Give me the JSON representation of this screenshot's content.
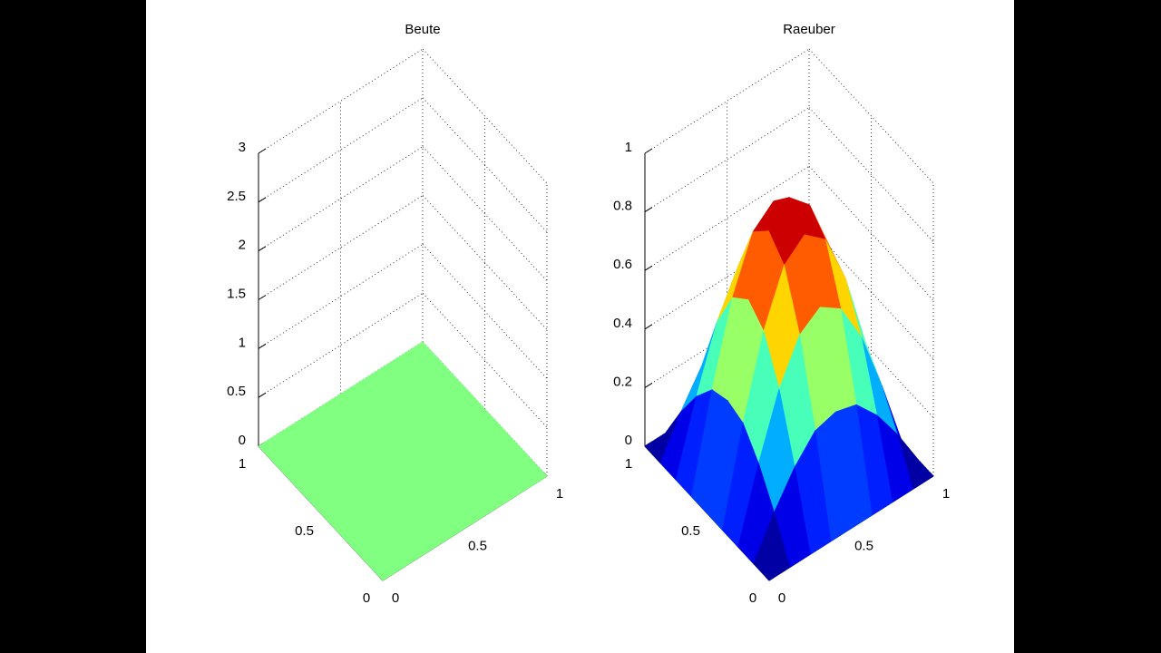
{
  "chart_data": [
    {
      "type": "surface",
      "title": "Beute",
      "colormap": "jet",
      "grid": true,
      "x": [
        0,
        1
      ],
      "y": [
        0,
        1
      ],
      "z": [
        [
          0,
          0
        ],
        [
          0,
          0
        ]
      ],
      "xlim": [
        0,
        1
      ],
      "ylim": [
        0,
        1
      ],
      "zlim": [
        0,
        3
      ],
      "xticks": [
        0,
        0.5,
        1
      ],
      "yticks": [
        0,
        0.5,
        1
      ],
      "zticks": [
        0,
        0.5,
        1,
        1.5,
        2,
        2.5,
        3
      ]
    },
    {
      "type": "surface",
      "title": "Raeuber",
      "colormap": "jet",
      "grid": true,
      "x": [
        0,
        0.125,
        0.25,
        0.375,
        0.5,
        0.625,
        0.75,
        0.875,
        1
      ],
      "y": [
        0,
        0.125,
        0.25,
        0.375,
        0.5,
        0.625,
        0.75,
        0.875,
        1
      ],
      "z": [
        [
          0,
          0,
          0,
          0,
          0,
          0,
          0,
          0,
          0
        ],
        [
          0,
          0.13,
          0.24,
          0.32,
          0.34,
          0.32,
          0.24,
          0.13,
          0
        ],
        [
          0,
          0.24,
          0.45,
          0.59,
          0.64,
          0.59,
          0.45,
          0.24,
          0
        ],
        [
          0,
          0.32,
          0.59,
          0.77,
          0.83,
          0.77,
          0.59,
          0.32,
          0
        ],
        [
          0,
          0.34,
          0.64,
          0.83,
          0.9,
          0.83,
          0.64,
          0.34,
          0
        ],
        [
          0,
          0.32,
          0.59,
          0.77,
          0.83,
          0.77,
          0.59,
          0.32,
          0
        ],
        [
          0,
          0.24,
          0.45,
          0.59,
          0.64,
          0.59,
          0.45,
          0.24,
          0
        ],
        [
          0,
          0.13,
          0.24,
          0.32,
          0.34,
          0.32,
          0.24,
          0.13,
          0
        ],
        [
          0,
          0,
          0,
          0,
          0,
          0,
          0,
          0,
          0
        ]
      ],
      "xlim": [
        0,
        1
      ],
      "ylim": [
        0,
        1
      ],
      "zlim": [
        0,
        1
      ],
      "xticks": [
        0,
        0.5,
        1
      ],
      "yticks": [
        0,
        0.5,
        1
      ],
      "zticks": [
        0,
        0.2,
        0.4,
        0.6,
        0.8,
        1
      ]
    }
  ]
}
